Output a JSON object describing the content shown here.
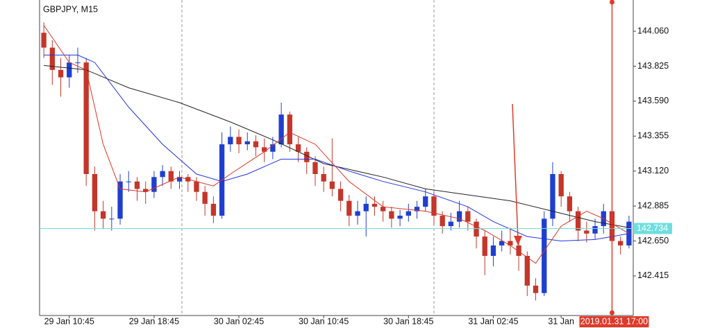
{
  "chart_data": {
    "type": "candlestick",
    "title": "GBPJPY, M15",
    "up_color": "#1f3fd0",
    "down_color": "#c4362a",
    "ylim": [
      142.149,
      144.27
    ],
    "yticks": [
      {
        "value": 144.06,
        "label": "144.060"
      },
      {
        "value": 143.825,
        "label": "143.825"
      },
      {
        "value": 143.59,
        "label": "143.590"
      },
      {
        "value": 143.355,
        "label": "143.355"
      },
      {
        "value": 143.12,
        "label": "143.120"
      },
      {
        "value": 142.885,
        "label": "142.885"
      },
      {
        "value": 142.65,
        "label": "142.650"
      },
      {
        "value": 142.415,
        "label": "142.415"
      }
    ],
    "xticks": [
      {
        "value": 3,
        "label": "29 Jan 10:45"
      },
      {
        "value": 13,
        "label": "29 Jan 18:45"
      },
      {
        "value": 23,
        "label": "30 Jan 02:45"
      },
      {
        "value": 33,
        "label": "30 Jan 10:45"
      },
      {
        "value": 43,
        "label": "30 Jan 18:45"
      },
      {
        "value": 53,
        "label": "31 Jan 02:45"
      },
      {
        "value": 61,
        "label": "31 Jan"
      }
    ],
    "open": [
      144.05,
      143.95,
      143.8,
      143.75,
      143.85,
      143.85,
      143.1,
      142.85,
      142.8,
      142.8,
      143.05,
      143.05,
      143.0,
      142.98,
      143.08,
      143.12,
      143.05,
      143.08,
      143.05,
      142.98,
      142.9,
      142.82,
      143.3,
      143.35,
      143.3,
      143.32,
      143.28,
      143.25,
      143.3,
      143.5,
      143.3,
      143.25,
      143.18,
      143.1,
      143.05,
      143.0,
      142.92,
      142.82,
      142.85,
      142.9,
      142.88,
      142.85,
      142.8,
      142.82,
      142.85,
      142.88,
      142.95,
      142.82,
      142.75,
      142.78,
      142.85,
      142.78,
      142.68,
      142.55,
      142.62,
      142.65,
      142.62,
      142.55,
      142.35,
      142.3,
      142.8,
      143.1,
      142.95,
      142.85,
      142.72,
      142.7,
      142.75,
      142.85,
      142.65,
      142.62
    ],
    "high": [
      144.12,
      144.0,
      143.88,
      143.9,
      143.95,
      143.88,
      143.15,
      142.92,
      142.88,
      143.1,
      143.12,
      143.08,
      143.05,
      143.12,
      143.16,
      143.15,
      143.12,
      143.1,
      143.08,
      143.02,
      142.95,
      143.38,
      143.42,
      143.4,
      143.38,
      143.36,
      143.34,
      143.35,
      143.58,
      143.52,
      143.35,
      143.28,
      143.22,
      143.15,
      143.34,
      143.05,
      142.96,
      142.92,
      142.95,
      142.95,
      142.92,
      142.88,
      142.86,
      142.9,
      142.92,
      143.0,
      142.98,
      142.85,
      142.84,
      142.92,
      142.88,
      142.8,
      142.72,
      142.68,
      142.72,
      142.74,
      142.66,
      142.58,
      142.4,
      142.85,
      143.18,
      143.12,
      142.98,
      142.88,
      142.78,
      142.8,
      142.9,
      142.88,
      142.68,
      142.82
    ],
    "low": [
      143.88,
      143.7,
      143.62,
      143.68,
      143.78,
      143.02,
      142.72,
      142.73,
      142.72,
      142.76,
      142.98,
      142.92,
      142.9,
      142.94,
      143.02,
      143.0,
      143.0,
      142.98,
      142.92,
      142.82,
      142.77,
      142.8,
      143.25,
      143.24,
      143.26,
      143.22,
      143.18,
      143.2,
      143.28,
      143.25,
      143.18,
      143.1,
      143.02,
      142.98,
      142.95,
      142.85,
      142.75,
      142.76,
      142.68,
      142.82,
      142.78,
      142.74,
      142.75,
      142.78,
      142.8,
      142.85,
      142.76,
      142.7,
      142.72,
      142.74,
      142.72,
      142.6,
      142.42,
      142.48,
      142.58,
      142.56,
      142.45,
      142.28,
      142.25,
      142.28,
      142.75,
      142.88,
      142.78,
      142.65,
      142.64,
      142.66,
      142.7,
      142.58,
      142.56,
      142.6
    ],
    "close": [
      143.95,
      143.8,
      143.75,
      143.85,
      143.85,
      143.1,
      142.85,
      142.8,
      142.8,
      143.05,
      143.05,
      143.0,
      142.98,
      143.08,
      143.12,
      143.05,
      143.08,
      143.05,
      142.98,
      142.9,
      142.82,
      143.3,
      143.35,
      143.3,
      143.32,
      143.28,
      143.25,
      143.3,
      143.5,
      143.3,
      143.25,
      143.18,
      143.1,
      143.05,
      143.0,
      142.92,
      142.82,
      142.85,
      142.9,
      142.88,
      142.85,
      142.8,
      142.82,
      142.85,
      142.88,
      142.95,
      142.82,
      142.75,
      142.78,
      142.85,
      142.78,
      142.68,
      142.55,
      142.62,
      142.65,
      142.62,
      142.55,
      142.35,
      142.3,
      142.8,
      143.1,
      142.95,
      142.85,
      142.72,
      142.7,
      142.75,
      142.85,
      142.65,
      142.62,
      142.78
    ],
    "series": [
      {
        "color": "#222222",
        "x": [
          0,
          5,
          10,
          16,
          22,
          27,
          33,
          40,
          45,
          50,
          55,
          60,
          65,
          69
        ],
        "values": [
          143.83,
          143.8,
          143.68,
          143.58,
          143.45,
          143.33,
          143.17,
          143.08,
          143.0,
          142.96,
          142.92,
          142.85,
          142.78,
          142.74
        ]
      },
      {
        "color": "#2233dd",
        "x": [
          0,
          4,
          6,
          10,
          14,
          18,
          21,
          24,
          28,
          32,
          36,
          40,
          45,
          50,
          53,
          57,
          61,
          65,
          69
        ],
        "values": [
          143.9,
          143.9,
          143.85,
          143.55,
          143.3,
          143.1,
          143.05,
          143.1,
          143.2,
          143.2,
          143.12,
          143.05,
          142.98,
          142.88,
          142.78,
          142.68,
          142.65,
          142.66,
          142.7
        ]
      },
      {
        "color": "#dd3322",
        "x": [
          0,
          3,
          5,
          7,
          9,
          12,
          16,
          20,
          22,
          26,
          29,
          32,
          36,
          40,
          45,
          49,
          52,
          55,
          58,
          61,
          64,
          66,
          69
        ],
        "values": [
          144.1,
          143.85,
          143.8,
          143.3,
          143.0,
          142.98,
          143.08,
          143.02,
          143.1,
          143.25,
          143.38,
          143.3,
          143.05,
          142.88,
          142.85,
          142.8,
          142.72,
          142.62,
          142.5,
          142.75,
          142.85,
          142.8,
          142.7
        ]
      }
    ],
    "price_line": {
      "value": 142.734,
      "label": "142.734",
      "color": "#6fdede"
    },
    "cursor": {
      "x": 67,
      "label": "2019.01.31 17:00",
      "color": "#e03a2a"
    }
  }
}
